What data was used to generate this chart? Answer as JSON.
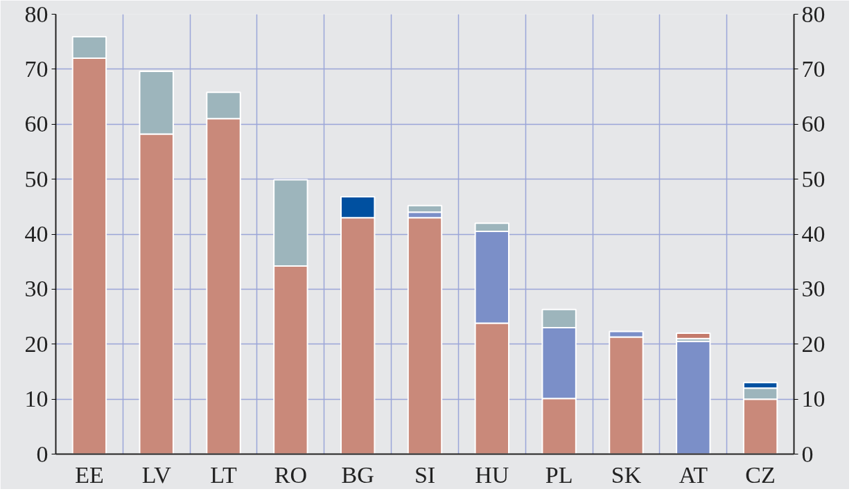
{
  "chart_data": {
    "type": "bar",
    "stacked": true,
    "categories": [
      "EE",
      "LV",
      "LT",
      "RO",
      "BG",
      "SI",
      "HU",
      "PL",
      "SK",
      "AT",
      "CZ"
    ],
    "series": [
      {
        "color": "#c9897a",
        "values": [
          72,
          58.2,
          61,
          34.2,
          43,
          43,
          23.8,
          10.1,
          21.3,
          0,
          10
        ]
      },
      {
        "color": "#7b8fc8",
        "values": [
          0,
          0,
          0,
          0,
          0,
          1,
          16.7,
          12.9,
          1,
          20.5,
          0
        ]
      },
      {
        "color": "#9db5bc",
        "values": [
          3.9,
          11.4,
          4.8,
          15.7,
          0,
          1.2,
          1.5,
          3.3,
          0,
          0.5,
          2
        ]
      },
      {
        "color": "#0050a0",
        "values": [
          0,
          0,
          0,
          0,
          3.8,
          0,
          0,
          0,
          0,
          0,
          1
        ]
      },
      {
        "color": "#c47a6a",
        "values": [
          0,
          0,
          0,
          0,
          0,
          0,
          0,
          0,
          0,
          1,
          0
        ]
      }
    ],
    "ylim": [
      0,
      80
    ],
    "yticks": [
      0,
      10,
      20,
      30,
      40,
      50,
      60,
      70,
      80
    ],
    "y2lim": [
      0,
      80
    ],
    "y2ticks": [
      0,
      10,
      20,
      30,
      40,
      50,
      60,
      70,
      80
    ],
    "grid": true
  }
}
